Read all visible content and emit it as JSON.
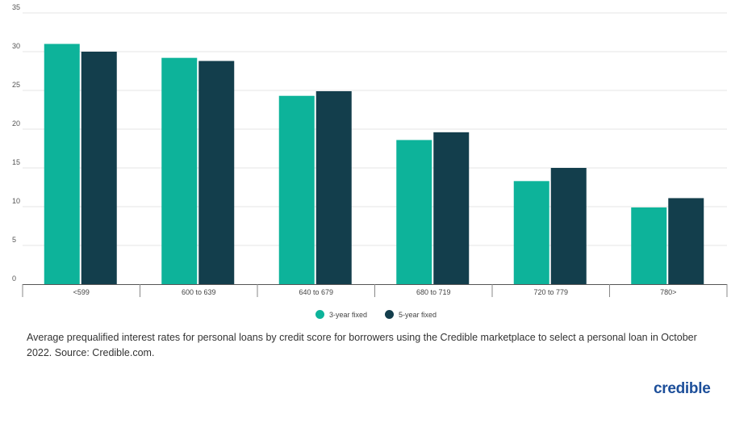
{
  "chart_data": {
    "type": "bar",
    "categories": [
      "<599",
      "600 to 639",
      "640 to 679",
      "680 to 719",
      "720 to 779",
      "780>"
    ],
    "series": [
      {
        "name": "3-year fixed",
        "color": "#0db39a",
        "values": [
          31.0,
          29.2,
          24.3,
          18.6,
          13.3,
          9.9
        ]
      },
      {
        "name": "5-year fixed",
        "color": "#133e4c",
        "values": [
          30.0,
          28.8,
          24.9,
          19.6,
          15.0,
          11.1
        ]
      }
    ],
    "yticks": [
      "0",
      "5",
      "10",
      "15",
      "20",
      "25",
      "30",
      "35"
    ],
    "ylim": [
      0,
      35
    ],
    "grid": true,
    "legend": "bottom-center",
    "title": "",
    "xlabel": "",
    "ylabel": ""
  },
  "legend": {
    "item1": "3-year fixed",
    "item2": "5-year fixed"
  },
  "caption": "Average prequalified interest rates for personal loans by credit score for borrowers using the Credible marketplace to select a personal loan in October 2022. Source: Credible.com.",
  "logo": {
    "text": "credible",
    "color": "#1d4f9a"
  }
}
